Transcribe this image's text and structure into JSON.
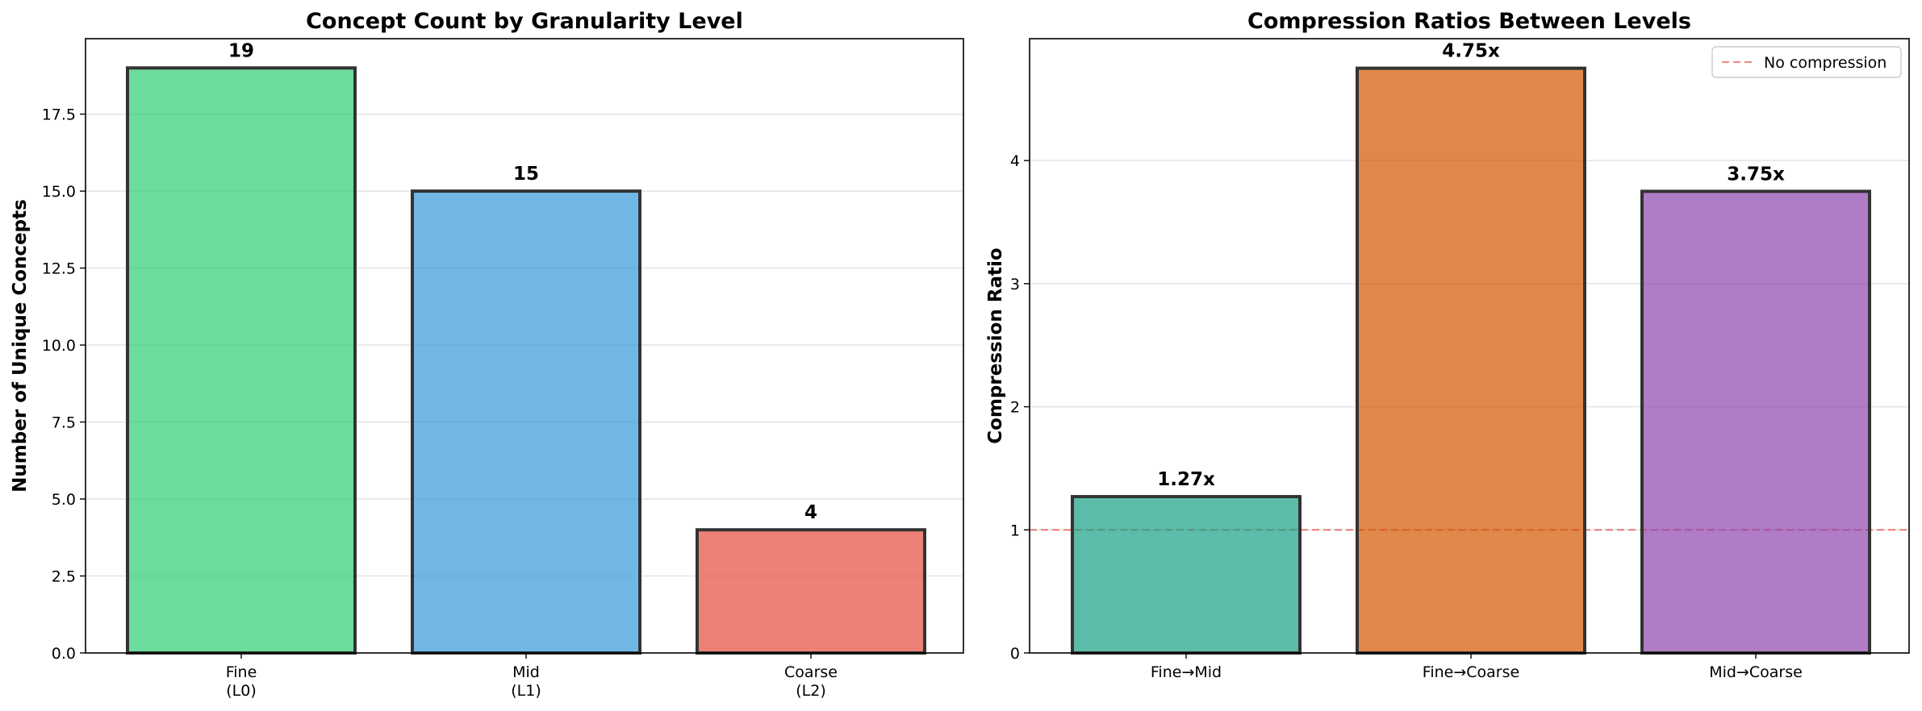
{
  "chart_data": [
    {
      "type": "bar",
      "title": "Concept Count by Granularity Level",
      "ylabel": "Number of Unique Concepts",
      "xlabel": "",
      "categories": [
        [
          "Fine",
          "(L0)"
        ],
        [
          "Mid",
          "(L1)"
        ],
        [
          "Coarse",
          "(L2)"
        ]
      ],
      "values": [
        19,
        15,
        4
      ],
      "value_labels": [
        "19",
        "15",
        "4"
      ],
      "colors": [
        "#2ecc71",
        "#3498db",
        "#e74c3c"
      ],
      "ylim": [
        0,
        19.95
      ],
      "yticks": [
        0,
        2.5,
        5,
        7.5,
        10,
        12.5,
        15,
        17.5
      ],
      "ytick_labels": [
        "0.0",
        "2.5",
        "5.0",
        "7.5",
        "10.0",
        "12.5",
        "15.0",
        "17.5"
      ],
      "grid": "y"
    },
    {
      "type": "bar",
      "title": "Compression Ratios Between Levels",
      "ylabel": "Compression Ratio",
      "xlabel": "",
      "categories": [
        [
          "Fine→Mid"
        ],
        [
          "Fine→Coarse"
        ],
        [
          "Mid→Coarse"
        ]
      ],
      "values": [
        1.27,
        4.75,
        3.75
      ],
      "value_labels": [
        "1.27x",
        "4.75x",
        "3.75x"
      ],
      "colors": [
        "#16a085",
        "#d35400",
        "#8e44ad"
      ],
      "ylim": [
        0,
        4.99
      ],
      "yticks": [
        0,
        1,
        2,
        3,
        4
      ],
      "ytick_labels": [
        "0",
        "1",
        "2",
        "3",
        "4"
      ],
      "grid": "y",
      "reference_line": {
        "y": 1,
        "label": "No compression",
        "color": "#e74c3c"
      },
      "legend": {
        "position": "top-right",
        "entries": [
          "No compression"
        ]
      }
    }
  ]
}
